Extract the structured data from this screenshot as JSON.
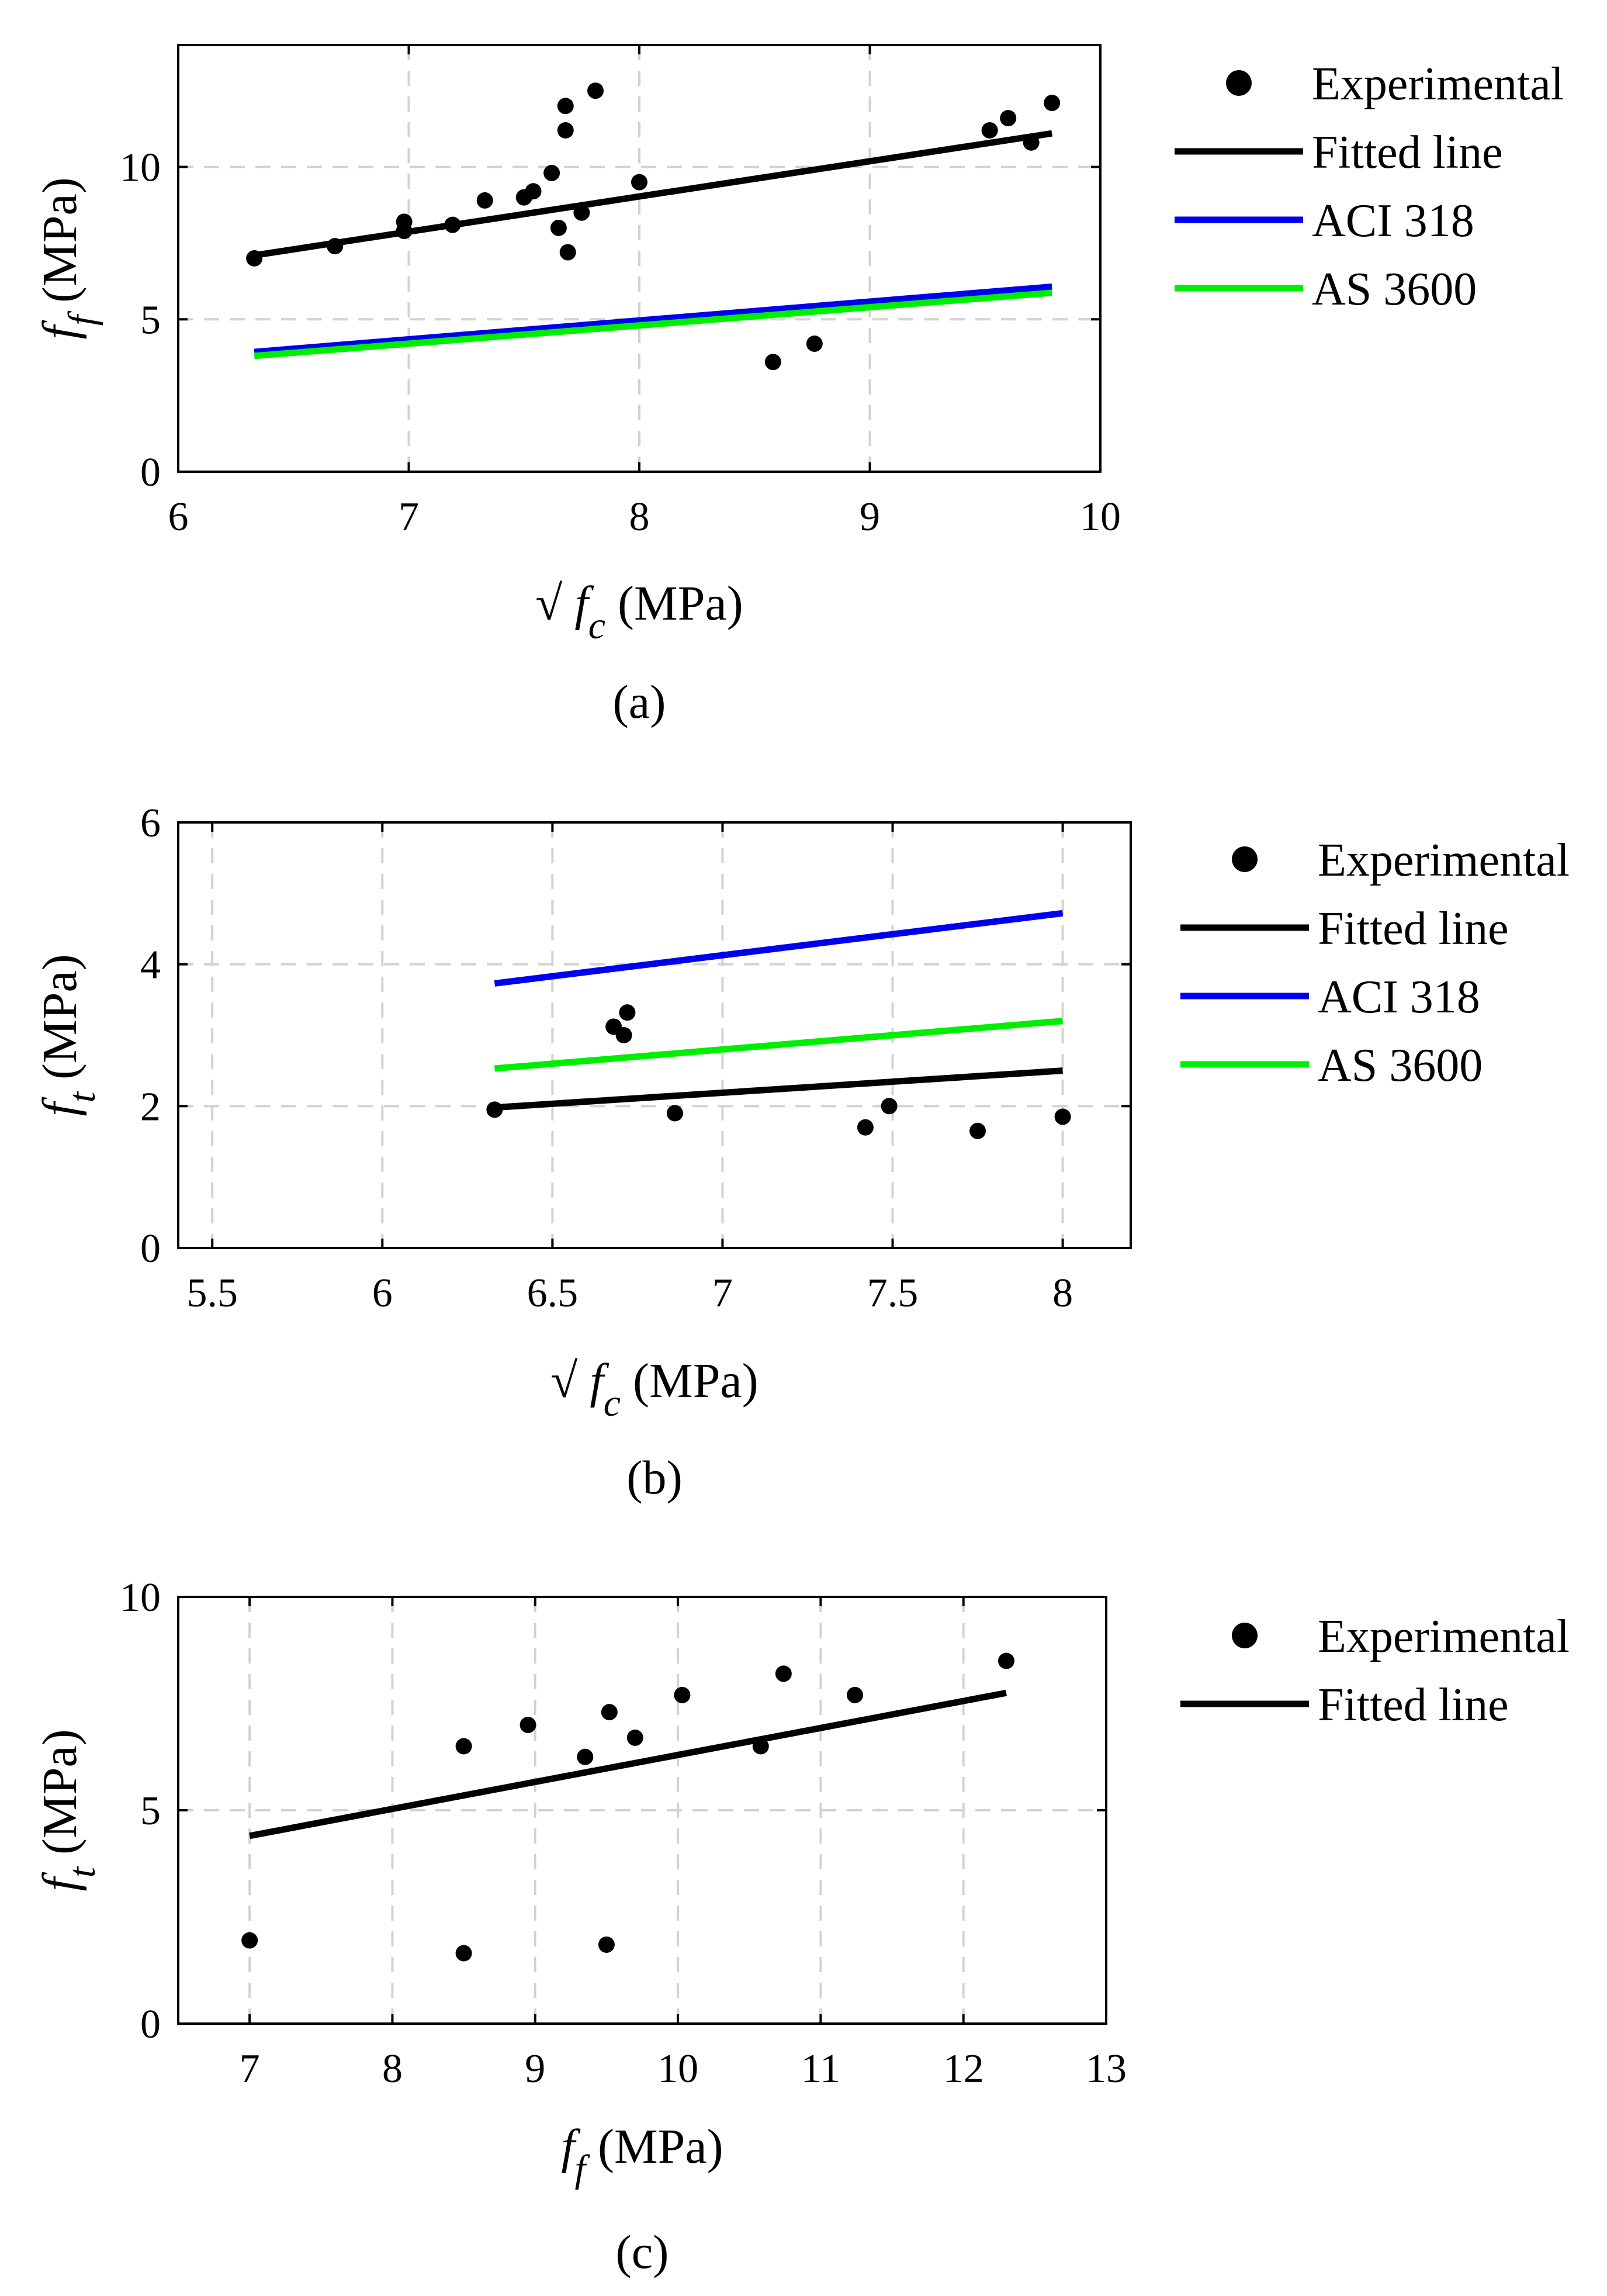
{
  "chart_data": [
    {
      "type": "scatter",
      "panel_label": "(a)",
      "xlabel": {
        "sqrt": "√",
        "var": "f",
        "sub": "c",
        "unit": "(MPa)"
      },
      "ylabel": {
        "var": "f",
        "sub": "f",
        "unit": "(MPa)"
      },
      "xlim": [
        6,
        10
      ],
      "ylim": [
        0,
        14
      ],
      "xticks": [
        6,
        7,
        8,
        9,
        10
      ],
      "xtick_labels": [
        "6",
        "7",
        "8",
        "9",
        "10"
      ],
      "yticks": [
        0,
        5,
        10
      ],
      "ytick_labels": [
        "0",
        "5",
        "10"
      ],
      "grid": true,
      "legend_position": "outside-right",
      "series": [
        {
          "name": "Experimental",
          "kind": "points",
          "color": "#000000",
          "x": [
            6.33,
            6.68,
            6.98,
            6.98,
            7.19,
            7.33,
            7.5,
            7.54,
            7.62,
            7.65,
            7.68,
            7.68,
            7.69,
            7.75,
            7.81,
            8.0,
            8.58,
            8.76,
            9.52,
            9.6,
            9.7,
            9.79
          ],
          "y": [
            7.0,
            7.4,
            7.9,
            8.2,
            8.1,
            8.9,
            9.0,
            9.2,
            9.8,
            8.0,
            12.0,
            11.2,
            7.2,
            8.5,
            12.5,
            9.5,
            3.6,
            4.2,
            11.2,
            11.6,
            10.8,
            12.1
          ]
        },
        {
          "name": "Fitted line",
          "kind": "line",
          "color": "#000000",
          "x": [
            6.33,
            9.79
          ],
          "y": [
            7.1,
            11.1
          ]
        },
        {
          "name": "ACI 318",
          "kind": "line",
          "color": "#0000ee",
          "x": [
            6.33,
            9.79
          ],
          "y": [
            3.93,
            6.07
          ]
        },
        {
          "name": "AS 3600",
          "kind": "line",
          "color": "#00ee00",
          "x": [
            6.33,
            9.79
          ],
          "y": [
            3.8,
            5.87
          ]
        }
      ]
    },
    {
      "type": "scatter",
      "panel_label": "(b)",
      "xlabel": {
        "sqrt": "√",
        "var": "f",
        "sub": "c",
        "unit": "(MPa)"
      },
      "ylabel": {
        "var": "f",
        "sub": "t",
        "unit": "(MPa)"
      },
      "xlim": [
        5.4,
        8.2
      ],
      "ylim": [
        0,
        6
      ],
      "xticks": [
        5.5,
        6,
        6.5,
        7,
        7.5,
        8
      ],
      "xtick_labels": [
        "5.5",
        "6",
        "6.5",
        "7",
        "7.5",
        "8"
      ],
      "yticks": [
        0,
        2,
        4,
        6
      ],
      "ytick_labels": [
        "0",
        "2",
        "4",
        "6"
      ],
      "grid": true,
      "legend_position": "outside-right",
      "series": [
        {
          "name": "Experimental",
          "kind": "points",
          "color": "#000000",
          "x": [
            6.33,
            6.68,
            6.71,
            6.72,
            6.86,
            7.42,
            7.49,
            7.75,
            8.0
          ],
          "y": [
            1.95,
            3.12,
            3.0,
            3.32,
            1.9,
            1.7,
            2.0,
            1.65,
            1.85
          ]
        },
        {
          "name": "Fitted line",
          "kind": "line",
          "color": "#000000",
          "x": [
            6.33,
            8.0
          ],
          "y": [
            1.98,
            2.5
          ]
        },
        {
          "name": "ACI 318",
          "kind": "line",
          "color": "#0000ee",
          "x": [
            6.33,
            8.0
          ],
          "y": [
            3.73,
            4.72
          ]
        },
        {
          "name": "AS 3600",
          "kind": "line",
          "color": "#00ee00",
          "x": [
            6.33,
            8.0
          ],
          "y": [
            2.53,
            3.2
          ]
        }
      ]
    },
    {
      "type": "scatter",
      "panel_label": "(c)",
      "xlabel": {
        "sqrt": "",
        "var": "f",
        "sub": "f",
        "unit": "(MPa)"
      },
      "ylabel": {
        "var": "f",
        "sub": "t",
        "unit": "(MPa)"
      },
      "xlim": [
        6.5,
        13
      ],
      "ylim": [
        0,
        10
      ],
      "xticks": [
        7,
        8,
        9,
        10,
        11,
        12,
        13
      ],
      "xtick_labels": [
        "7",
        "8",
        "9",
        "10",
        "11",
        "12",
        "13"
      ],
      "yticks": [
        0,
        5,
        10
      ],
      "ytick_labels": [
        "0",
        "5",
        "10"
      ],
      "grid": true,
      "legend_position": "outside-right",
      "series": [
        {
          "name": "Experimental",
          "kind": "points",
          "color": "#000000",
          "x": [
            7.0,
            8.5,
            8.5,
            8.95,
            9.35,
            9.5,
            9.52,
            9.7,
            10.03,
            10.58,
            10.74,
            11.24,
            12.3
          ],
          "y": [
            1.95,
            1.65,
            6.5,
            7.0,
            6.25,
            1.85,
            7.3,
            6.7,
            7.7,
            6.5,
            8.2,
            7.7,
            8.5
          ]
        },
        {
          "name": "Fitted line",
          "kind": "line",
          "color": "#000000",
          "x": [
            7.0,
            12.3
          ],
          "y": [
            4.4,
            7.75
          ]
        }
      ]
    }
  ]
}
